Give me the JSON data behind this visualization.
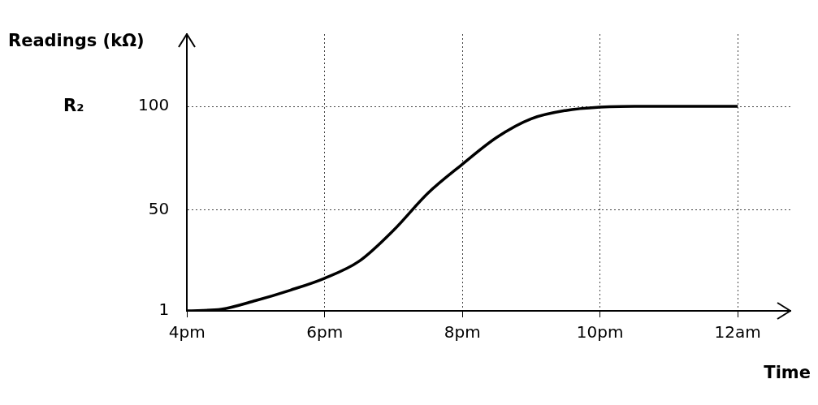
{
  "chart_data": {
    "type": "line",
    "ylabel": "Readings (kΩ)",
    "xlabel": "Time",
    "annotations": [
      "R₂"
    ],
    "categories": [
      "4pm",
      null,
      null,
      null,
      "6pm",
      null,
      null,
      null,
      "8pm",
      null,
      null,
      null,
      "10pm",
      null,
      null,
      null,
      "12am"
    ],
    "series": [
      {
        "color": "#000000",
        "values": [
          1,
          1.8,
          6,
          11,
          16.8,
          25,
          40,
          58,
          72,
          85,
          94,
          98,
          99.6,
          100,
          100,
          100,
          100
        ]
      }
    ],
    "ylim": [
      1,
      135
    ],
    "yticks": [
      1,
      50,
      100
    ],
    "grid": true,
    "line_style": "solid",
    "marker": "none",
    "legend": false
  }
}
